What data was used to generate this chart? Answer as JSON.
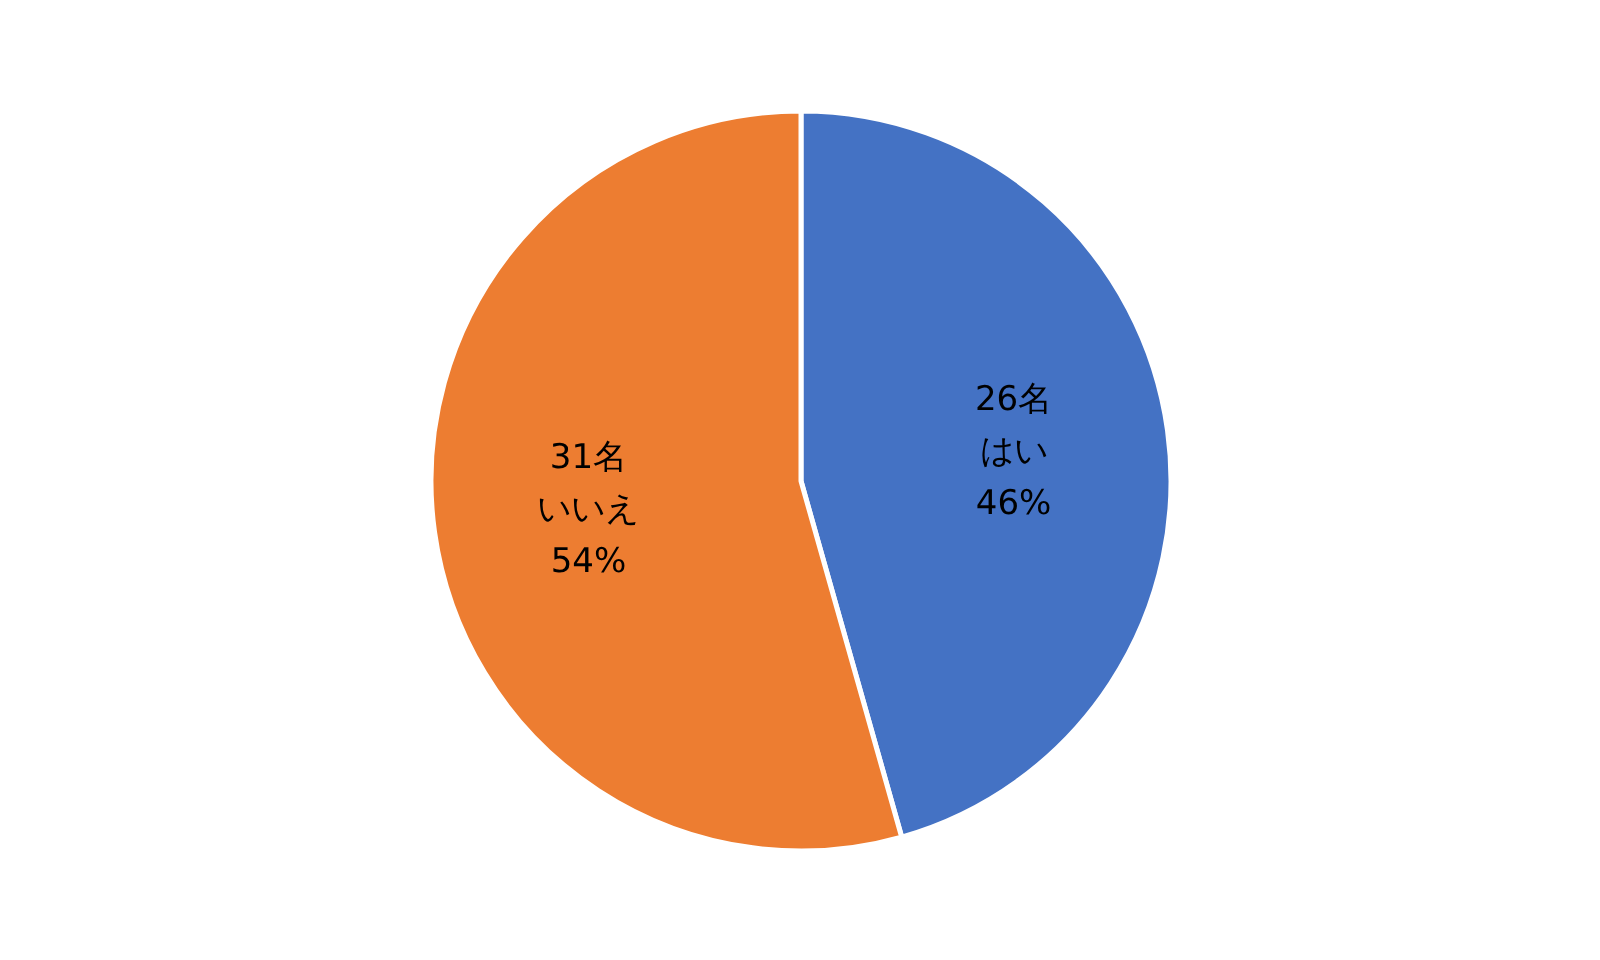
{
  "chart_data": {
    "type": "pie",
    "categories": [
      "はい",
      "いいえ"
    ],
    "values": [
      26,
      31
    ],
    "colors": [
      "#4472c4",
      "#ed7d31"
    ],
    "value_labels": [
      "26名",
      "31名"
    ],
    "annotations": [
      "46%",
      "54%"
    ]
  }
}
